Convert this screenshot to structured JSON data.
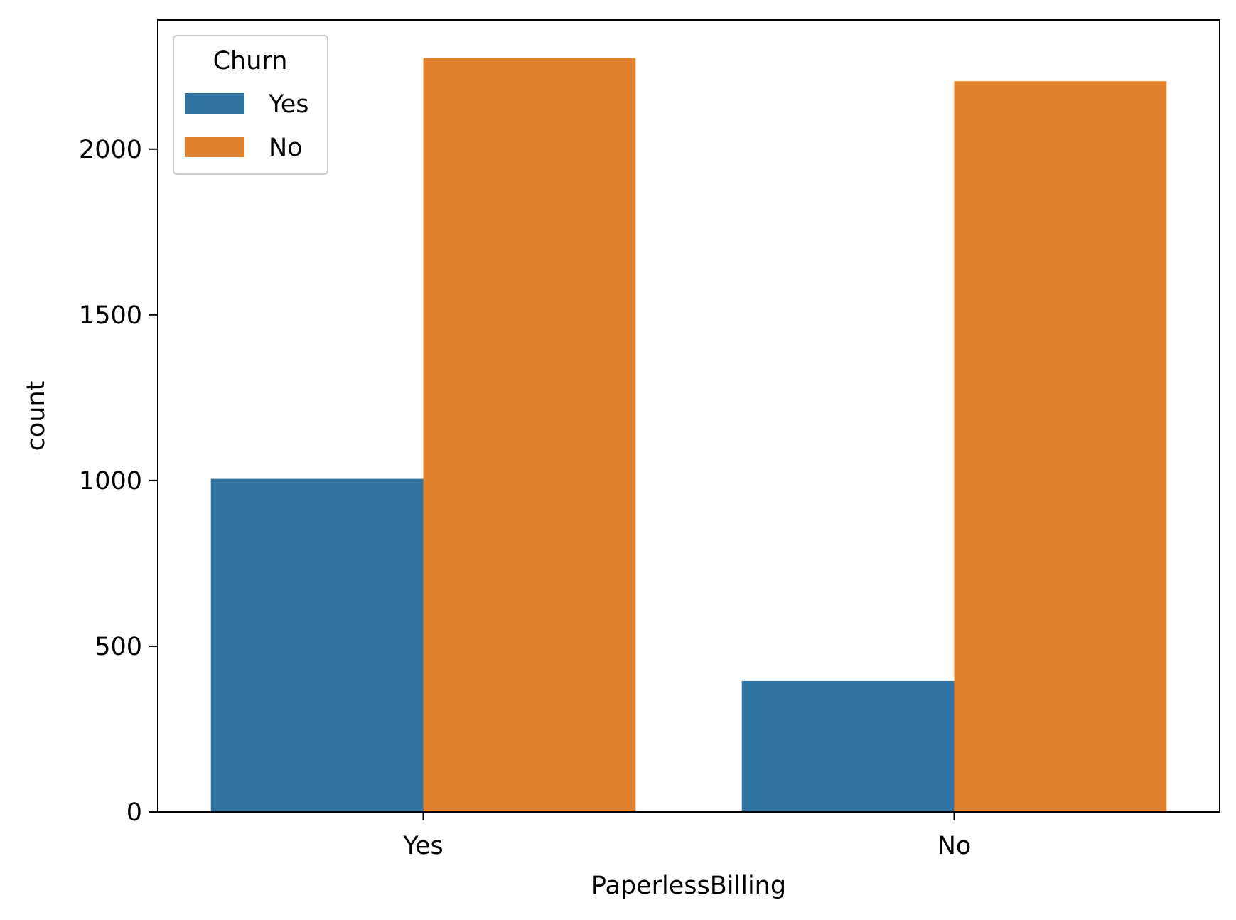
{
  "chart_data": {
    "type": "bar",
    "title": "",
    "xlabel": "PaperlessBilling",
    "ylabel": "count",
    "categories": [
      "Yes",
      "No"
    ],
    "series": [
      {
        "name": "Yes",
        "color": "#3274a1",
        "values": [
          1005,
          395
        ]
      },
      {
        "name": "No",
        "color": "#e1812c",
        "values": [
          2275,
          2205
        ]
      }
    ],
    "legend": {
      "title": "Churn",
      "position": "top-left"
    },
    "ylim": [
      0,
      2390
    ],
    "yticks": [
      0,
      500,
      1000,
      1500,
      2000
    ],
    "grid": false
  }
}
